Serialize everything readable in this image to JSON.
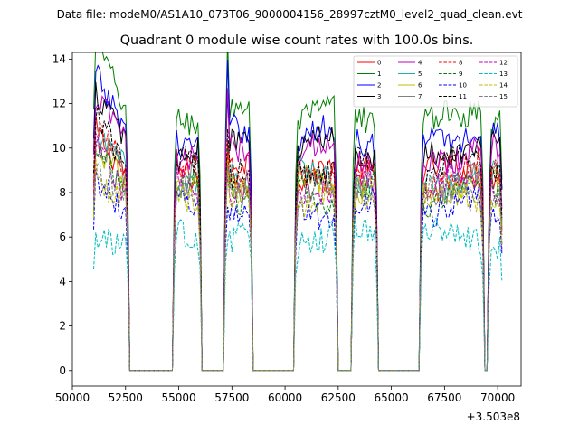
{
  "chart_data": {
    "type": "line",
    "suptitle": "Data file: modeM0/AS1A10_073T06_9000004156_28997cztM0_level2_quad_clean.evt",
    "title": "Quadrant 0 module wise count rates with 100.0s bins.",
    "xlabel": "",
    "ylabel": "",
    "x_offset_label": "+3.503e8",
    "xlim": [
      50000,
      71100
    ],
    "ylim": [
      -0.7,
      14.3
    ],
    "x_ticks": [
      50000,
      52500,
      55000,
      57500,
      60000,
      62500,
      65000,
      67500,
      70000
    ],
    "x_tick_labels": [
      "50000",
      "52500",
      "55000",
      "57500",
      "60000",
      "62500",
      "65000",
      "67500",
      "70000"
    ],
    "y_ticks": [
      0,
      2,
      4,
      6,
      8,
      10,
      12,
      14
    ],
    "y_tick_labels": [
      "0",
      "2",
      "4",
      "6",
      "8",
      "10",
      "12",
      "14"
    ],
    "bin_width": 100,
    "active_segments": [
      [
        51000,
        52600
      ],
      [
        54800,
        56000
      ],
      [
        57200,
        58400
      ],
      [
        60500,
        62400
      ],
      [
        63200,
        64300
      ],
      [
        66400,
        69300
      ],
      [
        69600,
        70200
      ]
    ],
    "legend_position": "upper-right",
    "series": [
      {
        "name": "0",
        "level": 9.0,
        "color": "#ff0000",
        "dash": "solid"
      },
      {
        "name": "1",
        "level": 11.5,
        "color": "#008000",
        "dash": "solid"
      },
      {
        "name": "2",
        "level": 10.5,
        "color": "#0000ff",
        "dash": "solid"
      },
      {
        "name": "3",
        "level": 10.0,
        "color": "#000000",
        "dash": "solid"
      },
      {
        "name": "4",
        "level": 9.8,
        "color": "#bf00bf",
        "dash": "solid"
      },
      {
        "name": "5",
        "level": 8.6,
        "color": "#20b2aa",
        "dash": "solid"
      },
      {
        "name": "6",
        "level": 8.2,
        "color": "#bfbf00",
        "dash": "solid"
      },
      {
        "name": "7",
        "level": 8.4,
        "color": "#808080",
        "dash": "solid"
      },
      {
        "name": "8",
        "level": 8.7,
        "color": "#ff0000",
        "dash": "dashed"
      },
      {
        "name": "9",
        "level": 8.0,
        "color": "#008000",
        "dash": "dashed"
      },
      {
        "name": "10",
        "level": 7.3,
        "color": "#0000ff",
        "dash": "dashed"
      },
      {
        "name": "11",
        "level": 9.2,
        "color": "#000000",
        "dash": "dashed"
      },
      {
        "name": "12",
        "level": 8.3,
        "color": "#bf00bf",
        "dash": "dashed"
      },
      {
        "name": "13",
        "level": 6.0,
        "color": "#00bfbf",
        "dash": "dashed"
      },
      {
        "name": "14",
        "level": 7.8,
        "color": "#bfbf00",
        "dash": "dashed"
      },
      {
        "name": "15",
        "level": 8.1,
        "color": "#808080",
        "dash": "dashed"
      }
    ]
  }
}
